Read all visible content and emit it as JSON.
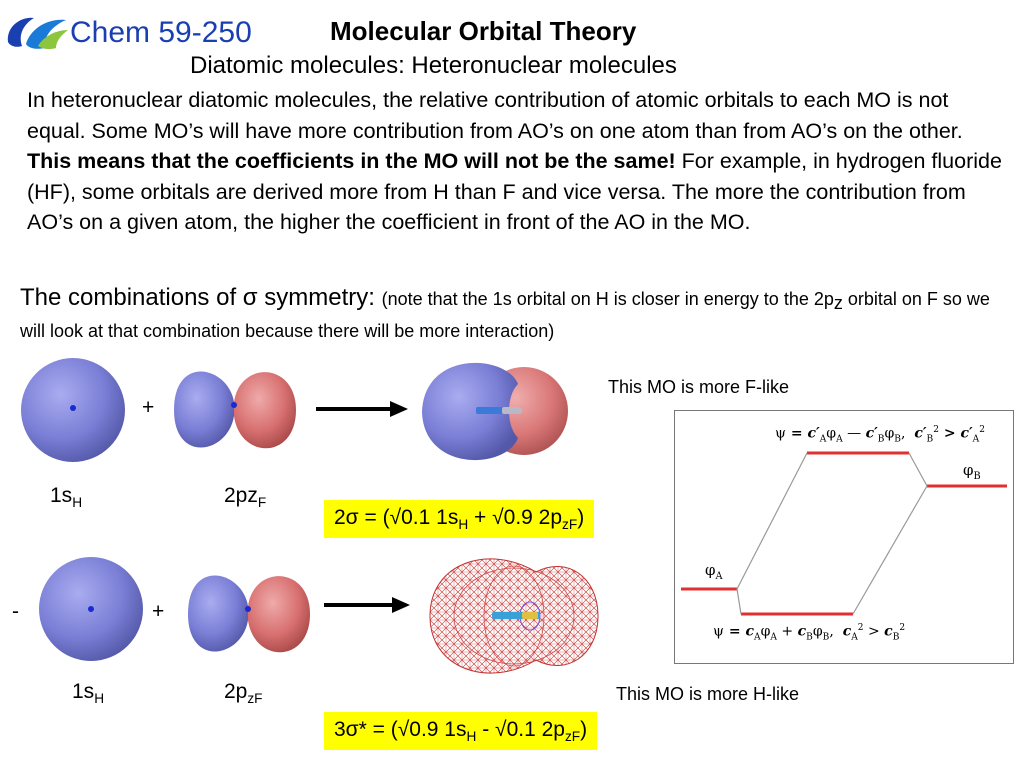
{
  "header": {
    "course_title": "Chem 59-250",
    "title": "Molecular Orbital Theory",
    "subtitle": "Diatomic molecules: Heteronuclear molecules"
  },
  "intro": {
    "part1": "In heteronuclear diatomic molecules, the relative contribution of atomic orbitals to each MO is not equal.  Some MO’s will have more contribution from AO’s on one atom than from AO’s on the other.  ",
    "bold": "This means that the coefficients in the MO will not be the same!",
    "part2": "  For example, in hydrogen fluoride (HF), some orbitals are derived more from H than F and vice versa.  The more the contribution from AO’s on a given atom, the higher the coefficient in front of the AO in the MO."
  },
  "sigma_heading": {
    "main_prefix": "The combinations of ",
    "sigma": "σ",
    "main_suffix": " symmetry: ",
    "note_prefix": "(note that the 1s orbital on H is closer in energy to the 2p",
    "note_sub": "z",
    "note_suffix": " orbital on F so we will look at that combination because there will be more interaction)"
  },
  "row1": {
    "operator": "+",
    "label_h": {
      "base": "1s",
      "sub": "H"
    },
    "label_f": {
      "base": "2pz",
      "sub": "F"
    },
    "equation": {
      "lhs": "2σ = (",
      "root1": "√",
      "t1": "0.1 1s",
      "t1_sub": "H",
      "plus": " + ",
      "root2": "√",
      "t2": "0.9 2p",
      "t2_sub": "zF",
      "close": ")"
    }
  },
  "row2": {
    "operator_minus": "-",
    "operator_plus": "+",
    "label_h": {
      "base": "1s",
      "sub": "H"
    },
    "label_f": {
      "base": "2p",
      "sub": "zF"
    },
    "equation": {
      "lhs": "3σ* = (",
      "root1": "√",
      "t1": "0.9 1s",
      "t1_sub": "H",
      "minus": " - ",
      "root2": "√",
      "t2": "0.1 2p",
      "t2_sub": "zF",
      "close": ")"
    }
  },
  "notes": {
    "f_like": "This MO is more F-like",
    "h_like": "This MO is more H-like"
  },
  "diagram": {
    "top_eq": {
      "psi": "ψ",
      "eq": " = ",
      "c_a": "c′",
      "a": "A",
      "phi_a": "φ",
      "minus": " — ",
      "c_b": "c′",
      "b": "B",
      "phi_b": "φ",
      "comma": ",",
      "cb2": "c′",
      "two": "2",
      "gt": " > ",
      "ca2": "c′"
    },
    "bottom_eq": {
      "psi": "ψ",
      "eq": " = ",
      "c": "c",
      "a": "A",
      "phi": "φ",
      "plus": " + ",
      "b": "B",
      "comma": ",",
      "two": "2",
      "gt": " > "
    },
    "phi_a_label": {
      "phi": "φ",
      "sub": "A"
    },
    "phi_b_label": {
      "phi": "φ",
      "sub": "B"
    },
    "colors": {
      "level": "#e03030",
      "connector": "#999999"
    }
  },
  "colors": {
    "s_orbital": "#7b7fd6",
    "lobe_blue": "#7b7fd6",
    "lobe_red": "#d87070",
    "highlight": "#ffff00",
    "title_blue": "#1a3fb0"
  }
}
